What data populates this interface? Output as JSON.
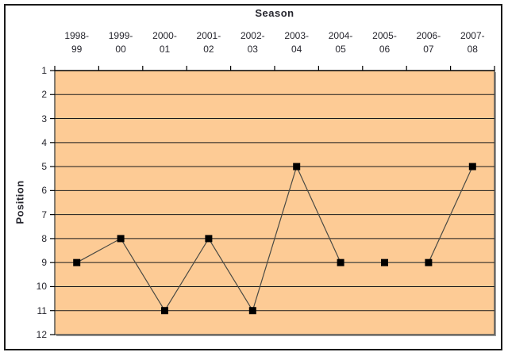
{
  "chart_data": {
    "type": "line",
    "title": "",
    "x_axis": {
      "title": "Season",
      "position": "top",
      "tick_marks": "between-categories"
    },
    "ylabel": "Position",
    "categories": [
      "1998-99",
      "1999-00",
      "2000-01",
      "2001-02",
      "2002-03",
      "2003-04",
      "2004-05",
      "2005-06",
      "2006-07",
      "2007-08"
    ],
    "series": [
      {
        "name": "Position",
        "values": [
          9,
          8,
          11,
          8,
          11,
          5,
          9,
          9,
          9,
          5
        ]
      }
    ],
    "y_axis": {
      "min": 1,
      "max": 12,
      "step": 1,
      "reversed": true,
      "tick_labels": [
        "1",
        "2",
        "3",
        "4",
        "5",
        "6",
        "7",
        "8",
        "9",
        "10",
        "11",
        "12"
      ]
    },
    "legend_position": "none",
    "grid": "horizontal",
    "marker": "filled-square",
    "colors": {
      "plot_fill": "#FDCB95",
      "series_line": "#4a4a44",
      "marker_fill": "#000000",
      "gridline": "#1a1a1a",
      "axis_line": "#000000",
      "plot_border": "#555550",
      "plot_shadow": "#9c9c9c",
      "axis_text": "#26262e",
      "outer_border": "#1a1a1a",
      "background": "#ffffff"
    }
  }
}
